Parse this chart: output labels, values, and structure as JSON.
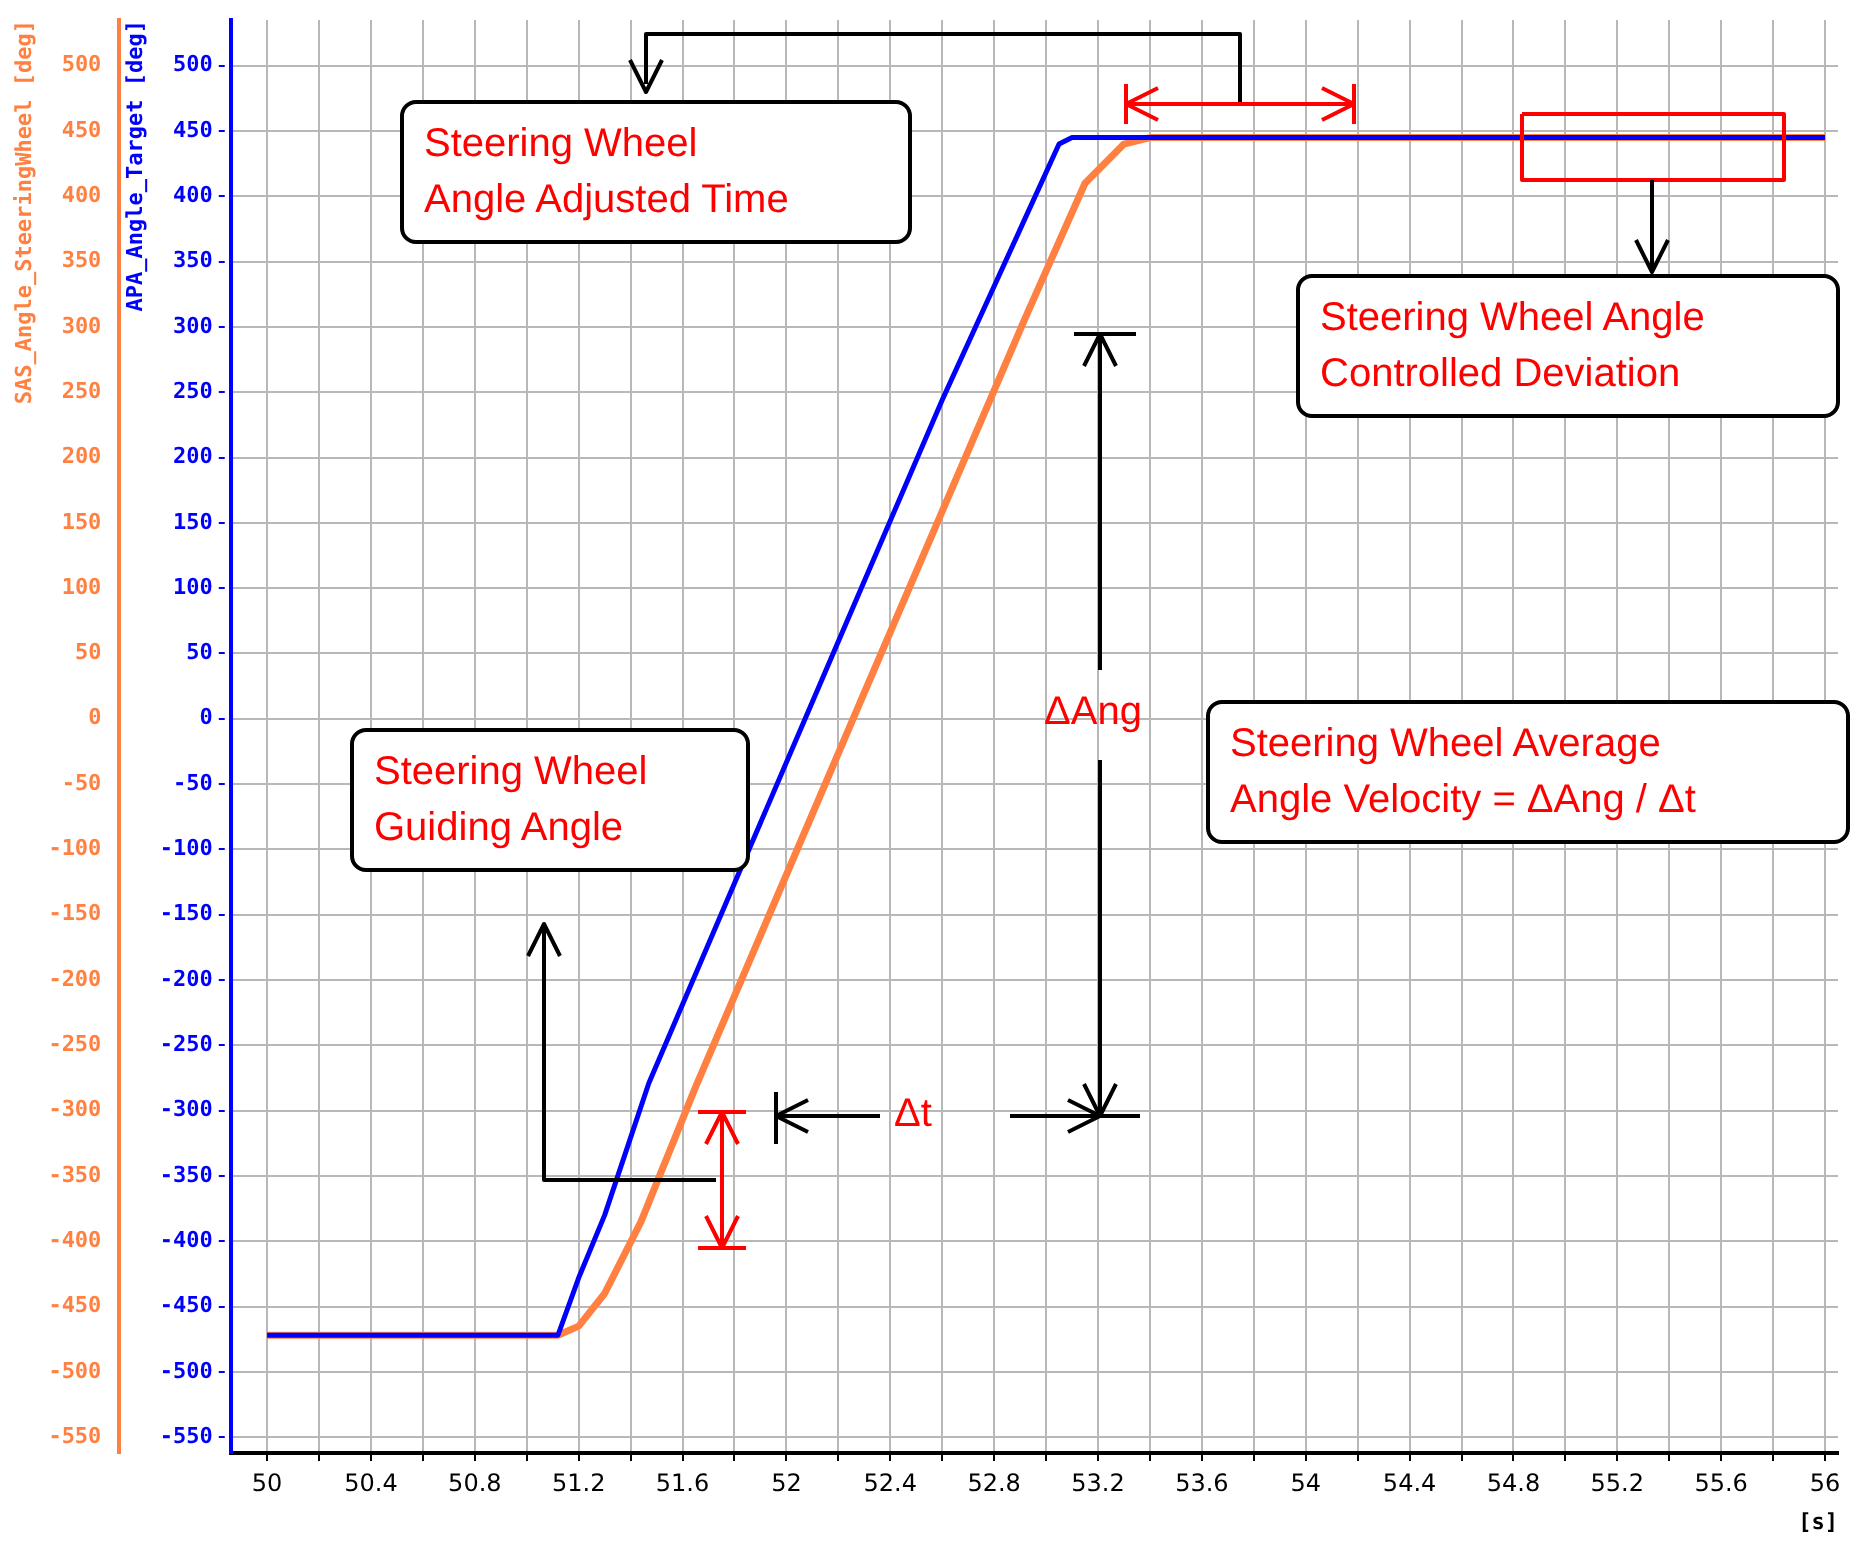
{
  "chart_data": {
    "type": "line",
    "xlabel": "[s]",
    "ylabel": "SAS_Angle_SteeringWheel [deg]",
    "y2label": "APA_Angle_Target [deg]",
    "xlim": [
      49.86,
      56.05
    ],
    "xticks": [
      50,
      {
        "value": 50.2,
        "label": null
      },
      50.4,
      {
        "value": 50.6,
        "label": null
      },
      50.8,
      {
        "value": 51,
        "label": null
      },
      51.2,
      {
        "value": 51.4,
        "label": null
      },
      51.6,
      {
        "value": 51.8,
        "label": null
      },
      52,
      {
        "value": 52.2,
        "label": null
      },
      52.4,
      {
        "value": 52.6,
        "label": null
      },
      52.8,
      {
        "value": 53,
        "label": null
      },
      53.2,
      {
        "value": 53.4,
        "label": null
      },
      53.6,
      {
        "value": 53.8,
        "label": null
      },
      54,
      {
        "value": 54.2,
        "label": null
      },
      54.4,
      {
        "value": 54.6,
        "label": null
      },
      54.8,
      {
        "value": 55,
        "label": null
      },
      55.2,
      {
        "value": 55.4,
        "label": null
      },
      55.6,
      {
        "value": 55.8,
        "label": null
      },
      56
    ],
    "ylim": [
      -562,
      535
    ],
    "yticks": [
      -550,
      -500,
      -450,
      -400,
      -350,
      -300,
      -250,
      -200,
      -150,
      -100,
      -50,
      0,
      50,
      100,
      150,
      200,
      250,
      300,
      350,
      400,
      450,
      500
    ],
    "y2lim": [
      -562,
      535
    ],
    "y2ticks": [
      -550,
      -500,
      -450,
      -400,
      -350,
      -300,
      -250,
      -200,
      -150,
      -100,
      -50,
      0,
      50,
      100,
      150,
      200,
      250,
      300,
      350,
      400,
      450,
      500
    ],
    "grid": true,
    "marker": "none",
    "line_style": "solid",
    "annotations": [
      "Steering Wheel\nAngle Adjusted Time",
      "Steering Wheel Angle\nControlled Deviation",
      "ΔAng",
      "Steering Wheel Average\nAngle Velocity = ΔAng / Δt",
      "Steering Wheel\nGuiding Angle",
      "Δt"
    ],
    "series": [
      {
        "color": "#ff8040",
        "axis": "y",
        "x": [
          50,
          51.12,
          51.2,
          51.3,
          51.44,
          51.65,
          52.3,
          52.92,
          53.15,
          53.3,
          53.4,
          56
        ],
        "values": [
          -472,
          -472,
          -465,
          -440,
          -385,
          -282,
          20,
          307,
          410,
          440,
          445,
          445
        ]
      },
      {
        "color": "#0000ff",
        "axis": "y2",
        "x": [
          50,
          51.12,
          51.2,
          51.3,
          51.47,
          51.8,
          52.18,
          52.6,
          53.05,
          53.1,
          56
        ],
        "values": [
          -472,
          -472,
          -428,
          -380,
          -279,
          -126,
          50,
          244,
          440,
          445,
          445
        ]
      }
    ]
  }
}
